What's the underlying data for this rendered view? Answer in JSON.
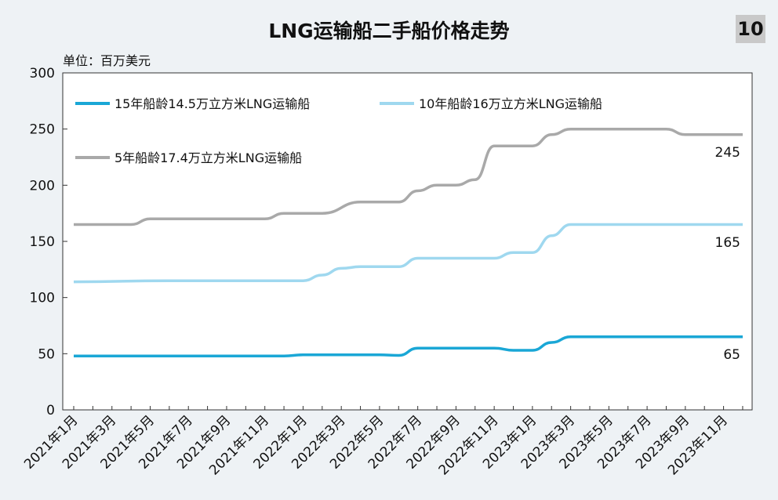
{
  "header": {
    "title": "LNG运输船二手船价格走势",
    "badge": "10",
    "unit": "单位：百万美元"
  },
  "chart_data": {
    "type": "line",
    "title": "LNG运输船二手船价格走势",
    "ylabel": "单位：百万美元",
    "ylim": [
      0,
      300
    ],
    "yticks": [
      0,
      50,
      100,
      150,
      200,
      250,
      300
    ],
    "xlim": [
      "2021-01",
      "2023-12"
    ],
    "x_tick_labels": [
      "2021年1月",
      "2021年3月",
      "2021年5月",
      "2021年7月",
      "2021年9月",
      "2021年11月",
      "2022年1月",
      "2022年3月",
      "2022年5月",
      "2022年7月",
      "2022年9月",
      "2022年11月",
      "2023年1月",
      "2023年3月",
      "2023年5月",
      "2023年7月",
      "2023年9月",
      "2023年11月"
    ],
    "grid": false,
    "legend_position": "top-left",
    "series": [
      {
        "name": "15年船龄14.5万立方米LNG运输船",
        "color": "#1aa7d6",
        "end_label": "65",
        "points": [
          [
            "2021-01",
            48
          ],
          [
            "2021-06",
            48
          ],
          [
            "2021-12",
            48
          ],
          [
            "2022-01",
            49
          ],
          [
            "2022-05",
            49
          ],
          [
            "2022-06",
            48.5
          ],
          [
            "2022-07",
            55
          ],
          [
            "2022-08",
            55
          ],
          [
            "2022-11",
            55
          ],
          [
            "2022-12",
            53
          ],
          [
            "2023-01",
            53
          ],
          [
            "2023-02",
            60
          ],
          [
            "2023-03",
            65
          ],
          [
            "2023-06",
            65
          ],
          [
            "2023-12",
            65
          ]
        ]
      },
      {
        "name": "10年船龄16万立方米LNG运输船",
        "color": "#9fd8ef",
        "end_label": "165",
        "points": [
          [
            "2021-01",
            114
          ],
          [
            "2021-06",
            115
          ],
          [
            "2021-12",
            115
          ],
          [
            "2022-01",
            115
          ],
          [
            "2022-02",
            120
          ],
          [
            "2022-03",
            126
          ],
          [
            "2022-04",
            127.5
          ],
          [
            "2022-06",
            127.5
          ],
          [
            "2022-07",
            135
          ],
          [
            "2022-08",
            135
          ],
          [
            "2022-11",
            135
          ],
          [
            "2022-12",
            140
          ],
          [
            "2023-01",
            140
          ],
          [
            "2023-02",
            155
          ],
          [
            "2023-03",
            165
          ],
          [
            "2023-06",
            165
          ],
          [
            "2023-12",
            165
          ]
        ]
      },
      {
        "name": "5年船龄17.4万立方米LNG运输船",
        "color": "#a9a9a9",
        "end_label": "245",
        "points": [
          [
            "2021-01",
            165
          ],
          [
            "2021-04",
            165
          ],
          [
            "2021-05",
            170
          ],
          [
            "2021-11",
            170
          ],
          [
            "2021-12",
            175
          ],
          [
            "2022-02",
            175
          ],
          [
            "2022-04",
            185
          ],
          [
            "2022-06",
            185
          ],
          [
            "2022-07",
            195
          ],
          [
            "2022-08",
            200
          ],
          [
            "2022-09",
            200
          ],
          [
            "2022-10",
            205
          ],
          [
            "2022-11",
            235
          ],
          [
            "2023-01",
            235
          ],
          [
            "2023-02",
            245
          ],
          [
            "2023-03",
            250
          ],
          [
            "2023-08",
            250
          ],
          [
            "2023-09",
            245
          ],
          [
            "2023-12",
            245
          ]
        ]
      }
    ]
  }
}
